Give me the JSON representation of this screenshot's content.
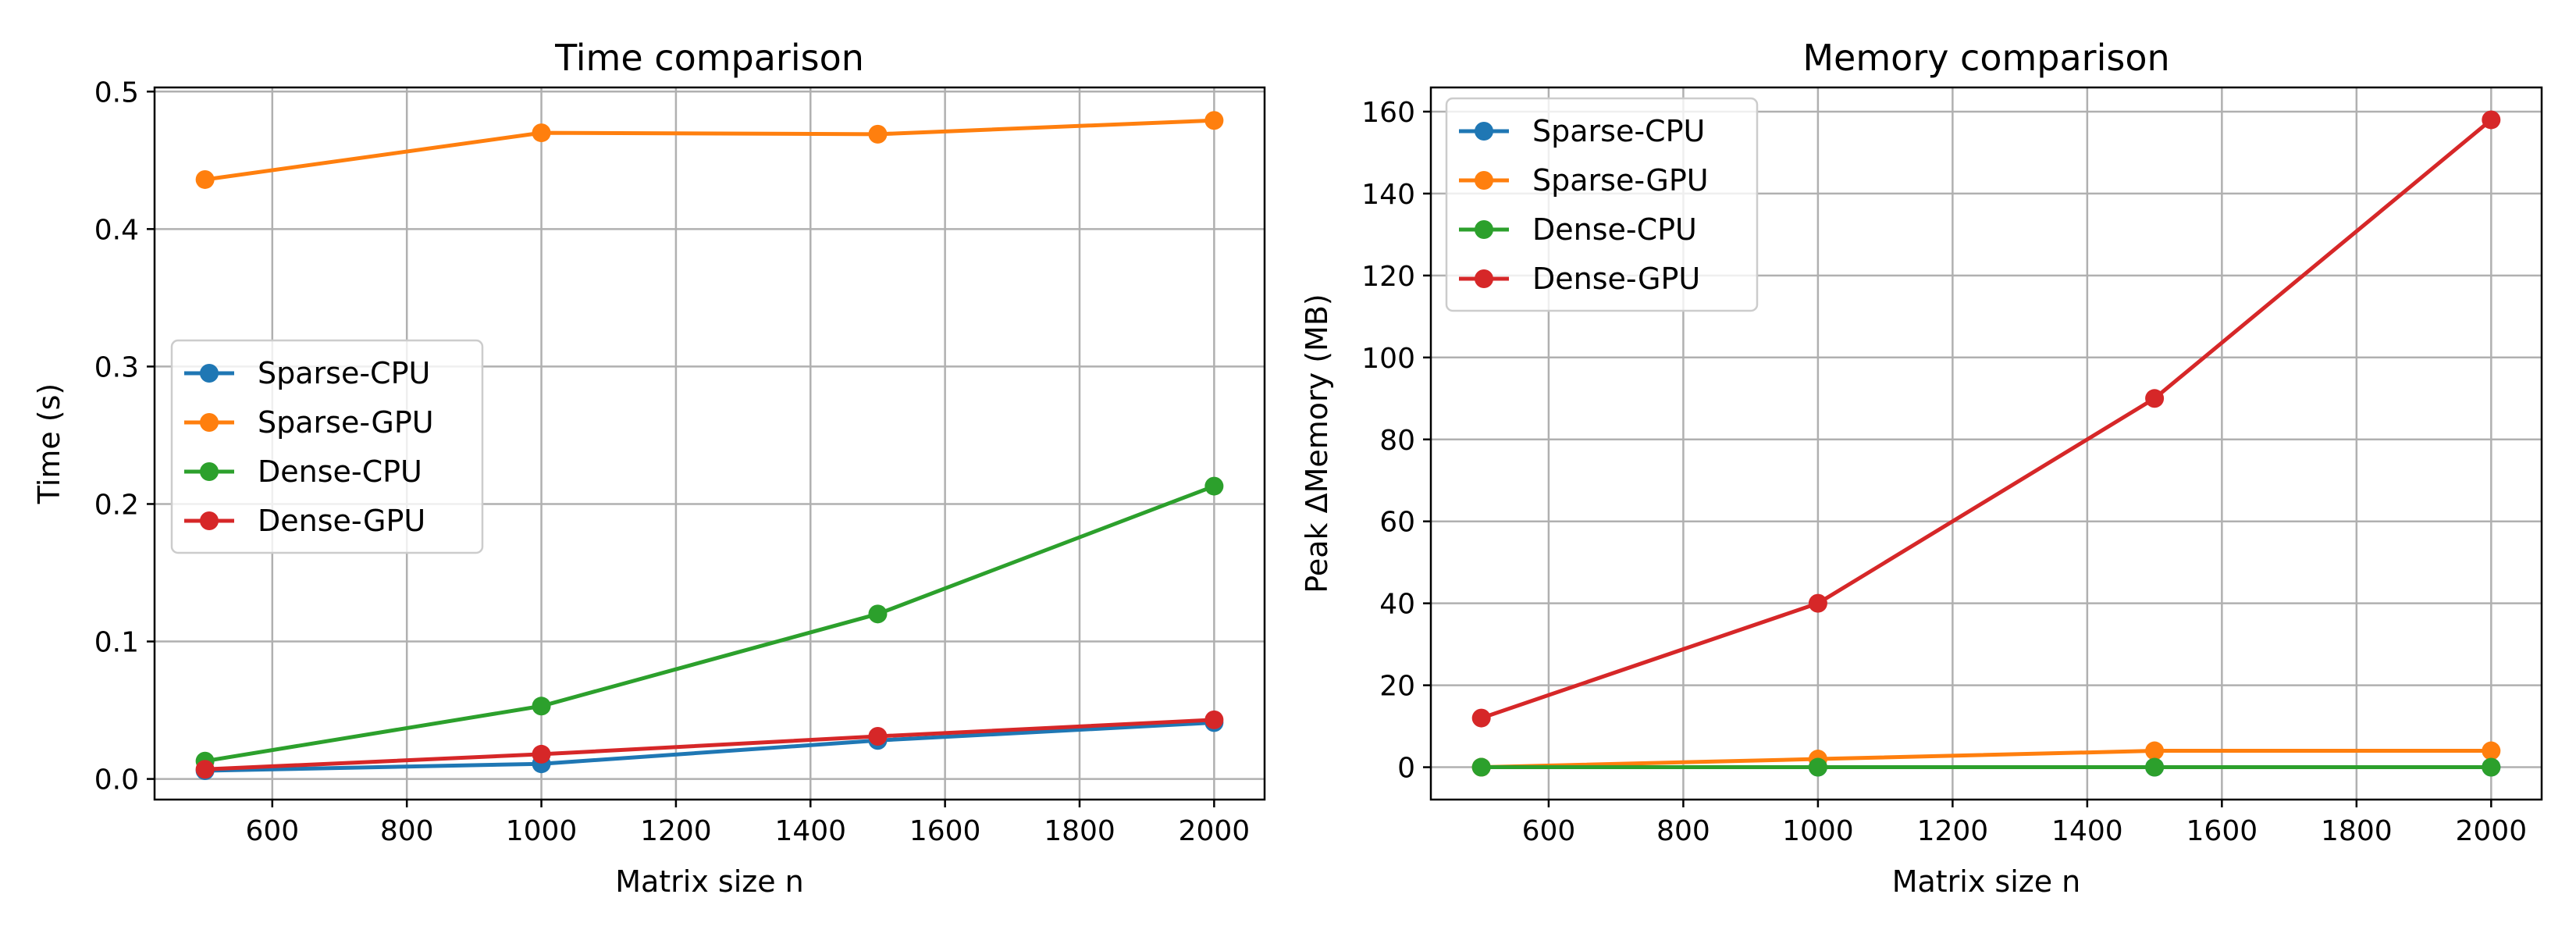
{
  "chart_data": [
    {
      "type": "line",
      "title": "Time comparison",
      "xlabel": "Matrix size n",
      "ylabel": "Time (s)",
      "x": [
        500,
        1000,
        1500,
        2000
      ],
      "xlim": [
        425,
        2075
      ],
      "ylim": [
        -0.015,
        0.503
      ],
      "xticks": [
        600,
        800,
        1000,
        1200,
        1400,
        1600,
        1800,
        2000
      ],
      "yticks": [
        0.0,
        0.1,
        0.2,
        0.3,
        0.4,
        0.5
      ],
      "ytick_labels": [
        "0.0",
        "0.1",
        "0.2",
        "0.3",
        "0.4",
        "0.5"
      ],
      "grid": true,
      "legend_position": "center-left",
      "series": [
        {
          "name": "Sparse-CPU",
          "color": "#1f77b4",
          "values": [
            0.006,
            0.011,
            0.028,
            0.041
          ]
        },
        {
          "name": "Sparse-GPU",
          "color": "#ff7f0e",
          "values": [
            0.436,
            0.47,
            0.469,
            0.479
          ]
        },
        {
          "name": "Dense-CPU",
          "color": "#2ca02c",
          "values": [
            0.013,
            0.053,
            0.12,
            0.213
          ]
        },
        {
          "name": "Dense-GPU",
          "color": "#d62728",
          "values": [
            0.007,
            0.018,
            0.031,
            0.043
          ]
        }
      ]
    },
    {
      "type": "line",
      "title": "Memory comparison",
      "xlabel": "Matrix size n",
      "ylabel": "Peak ΔMemory (MB)",
      "x": [
        500,
        1000,
        1500,
        2000
      ],
      "xlim": [
        425,
        2075
      ],
      "ylim": [
        -7.9,
        165.9
      ],
      "xticks": [
        600,
        800,
        1000,
        1200,
        1400,
        1600,
        1800,
        2000
      ],
      "yticks": [
        0,
        20,
        40,
        60,
        80,
        100,
        120,
        140,
        160
      ],
      "ytick_labels": [
        "0",
        "20",
        "40",
        "60",
        "80",
        "100",
        "120",
        "140",
        "160"
      ],
      "grid": true,
      "legend_position": "top-left",
      "series": [
        {
          "name": "Sparse-CPU",
          "color": "#1f77b4",
          "values": [
            0.0,
            0.0,
            0.0,
            0.0
          ]
        },
        {
          "name": "Sparse-GPU",
          "color": "#ff7f0e",
          "values": [
            0.0,
            2.0,
            4.0,
            4.0
          ]
        },
        {
          "name": "Dense-CPU",
          "color": "#2ca02c",
          "values": [
            0.0,
            0.0,
            0.0,
            0.0
          ]
        },
        {
          "name": "Dense-GPU",
          "color": "#d62728",
          "values": [
            12.0,
            40.0,
            90.0,
            158.0
          ]
        }
      ]
    }
  ]
}
